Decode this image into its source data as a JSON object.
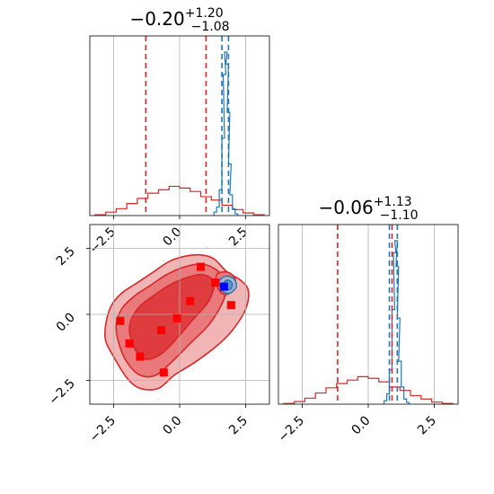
{
  "chart_data": {
    "type": "corner",
    "grid": true,
    "colors": {
      "primary": "#d62728",
      "secondary": "#1f77b4",
      "sample_marker": "#ff0000",
      "truth_marker": "#0000ff",
      "contour_levels": [
        "#f2b5b6",
        "#e9797b",
        "#df3c3f"
      ]
    },
    "panels": [
      {
        "kind": "histogram",
        "position": "top-left",
        "title": {
          "median": "−0.20",
          "plus": "+1.20",
          "minus": "−1.08"
        },
        "xlim": [
          -3.4,
          3.4
        ],
        "xticks": [
          -2.5,
          0.0,
          2.5
        ],
        "tick_labels": [
          "−2.5",
          "0.0",
          "2.5"
        ],
        "series": [
          {
            "name": "",
            "color": "#d62728",
            "bins_center": [
              -3.0,
              -2.6,
              -2.2,
              -1.8,
              -1.4,
              -1.0,
              -0.6,
              -0.2,
              0.2,
              0.6,
              1.0,
              1.4,
              1.8,
              2.2,
              2.6,
              3.0
            ],
            "density": [
              0.005,
              0.02,
              0.04,
              0.07,
              0.1,
              0.13,
              0.15,
              0.17,
              0.16,
              0.14,
              0.11,
              0.09,
              0.06,
              0.035,
              0.015,
              0.005
            ]
          },
          {
            "name": "",
            "color": "#1f77b4",
            "bins_center": [
              1.35,
              1.45,
              1.55,
              1.65,
              1.7,
              1.75,
              1.8,
              1.85,
              1.9,
              1.95,
              2.05,
              2.15
            ],
            "density": [
              0.02,
              0.05,
              0.15,
              0.45,
              0.82,
              0.95,
              0.88,
              0.6,
              0.3,
              0.12,
              0.04,
              0.01
            ]
          }
        ],
        "quantile_lines": [
          {
            "series_color": "#d62728",
            "values": [
              -1.28,
              1.0
            ]
          },
          {
            "series_color": "#1f77b4",
            "values": [
              1.6,
              1.85
            ]
          }
        ]
      },
      {
        "kind": "histogram",
        "position": "bottom-right",
        "title": {
          "median": "−0.06",
          "plus": "+1.13",
          "minus": "−1.10"
        },
        "xlim": [
          -3.4,
          3.4
        ],
        "xticks": [
          -2.5,
          0.0,
          2.5
        ],
        "tick_labels": [
          "−2.5",
          "0.0",
          "2.5"
        ],
        "series": [
          {
            "name": "",
            "color": "#d62728",
            "bins_center": [
              -3.0,
              -2.6,
              -2.2,
              -1.8,
              -1.4,
              -1.0,
              -0.6,
              -0.2,
              0.2,
              0.6,
              1.0,
              1.4,
              1.8,
              2.2,
              2.6,
              3.0
            ],
            "density": [
              0.004,
              0.015,
              0.035,
              0.065,
              0.095,
              0.12,
              0.14,
              0.16,
              0.15,
              0.13,
              0.1,
              0.08,
              0.05,
              0.03,
              0.012,
              0.004
            ]
          },
          {
            "name": "",
            "color": "#1f77b4",
            "bins_center": [
              0.65,
              0.75,
              0.85,
              0.95,
              1.0,
              1.05,
              1.1,
              1.15,
              1.2,
              1.3,
              1.4,
              1.5
            ],
            "density": [
              0.02,
              0.06,
              0.2,
              0.55,
              0.88,
              0.95,
              0.8,
              0.5,
              0.25,
              0.1,
              0.03,
              0.01
            ]
          }
        ],
        "quantile_lines": [
          {
            "series_color": "#d62728",
            "values": [
              -1.16,
              0.9
            ]
          },
          {
            "series_color": "#1f77b4",
            "values": [
              0.8,
              1.1
            ]
          }
        ]
      },
      {
        "kind": "scatter_contour",
        "position": "bottom-left",
        "xlim": [
          -3.4,
          3.4
        ],
        "ylim": [
          -3.4,
          3.4
        ],
        "xticks": [
          -2.5,
          0.0,
          2.5
        ],
        "yticks": [
          -2.5,
          0.0,
          2.5
        ],
        "xtick_labels": [
          "−2.5",
          "0.0",
          "2.5"
        ],
        "ytick_labels": [
          "−2.5",
          "0.0",
          "2.5"
        ],
        "contours": [
          {
            "level": 3,
            "points": [
              [
                -2.8,
                -0.4
              ],
              [
                -2.6,
                0.3
              ],
              [
                -2.2,
                0.8
              ],
              [
                -1.6,
                1.2
              ],
              [
                -1.0,
                1.6
              ],
              [
                -0.4,
                2.0
              ],
              [
                0.2,
                2.2
              ],
              [
                0.8,
                2.25
              ],
              [
                1.3,
                2.1
              ],
              [
                1.8,
                1.6
              ],
              [
                2.3,
                1.3
              ],
              [
                2.6,
                0.9
              ],
              [
                2.5,
                0.2
              ],
              [
                2.0,
                -0.6
              ],
              [
                1.4,
                -1.2
              ],
              [
                0.6,
                -1.8
              ],
              [
                -0.2,
                -2.3
              ],
              [
                -0.8,
                -2.8
              ],
              [
                -1.5,
                -2.8
              ],
              [
                -2.0,
                -2.4
              ],
              [
                -2.5,
                -1.6
              ],
              [
                -2.8,
                -1.0
              ]
            ]
          },
          {
            "level": 2,
            "points": [
              [
                -2.4,
                -0.4
              ],
              [
                -2.2,
                0.2
              ],
              [
                -1.7,
                0.7
              ],
              [
                -1.1,
                1.1
              ],
              [
                -0.5,
                1.5
              ],
              [
                0.2,
                1.8
              ],
              [
                0.9,
                1.9
              ],
              [
                1.5,
                1.6
              ],
              [
                1.8,
                1.1
              ],
              [
                1.6,
                0.4
              ],
              [
                1.1,
                -0.4
              ],
              [
                0.4,
                -1.1
              ],
              [
                -0.3,
                -1.8
              ],
              [
                -0.9,
                -2.3
              ],
              [
                -1.5,
                -2.3
              ],
              [
                -2.0,
                -1.8
              ],
              [
                -2.3,
                -1.1
              ]
            ]
          },
          {
            "level": 1,
            "points": [
              [
                -1.9,
                -0.5
              ],
              [
                -1.6,
                0.2
              ],
              [
                -1.0,
                0.7
              ],
              [
                -0.4,
                1.1
              ],
              [
                0.3,
                1.4
              ],
              [
                0.9,
                1.5
              ],
              [
                1.3,
                1.2
              ],
              [
                1.1,
                0.5
              ],
              [
                0.5,
                -0.2
              ],
              [
                -0.1,
                -0.9
              ],
              [
                -0.7,
                -1.5
              ],
              [
                -1.3,
                -1.7
              ],
              [
                -1.7,
                -1.3
              ]
            ]
          },
          {
            "level": 2,
            "points": [
              [
                1.4,
                1.5
              ],
              [
                1.8,
                1.6
              ],
              [
                2.1,
                1.35
              ],
              [
                2.0,
                0.9
              ],
              [
                1.7,
                0.75
              ],
              [
                1.45,
                1.0
              ]
            ]
          }
        ],
        "secondary_contours": [
          {
            "points": [
              [
                1.5,
                1.25
              ],
              [
                1.75,
                1.45
              ],
              [
                2.05,
                1.35
              ],
              [
                2.15,
                1.05
              ],
              [
                1.9,
                0.8
              ],
              [
                1.6,
                0.9
              ]
            ]
          },
          {
            "points": [
              [
                1.65,
                1.15
              ],
              [
                1.8,
                1.3
              ],
              [
                1.98,
                1.2
              ],
              [
                1.95,
                0.98
              ],
              [
                1.75,
                0.92
              ]
            ]
          }
        ],
        "sample_markers": [
          [
            -2.25,
            -0.25
          ],
          [
            -1.9,
            -1.1
          ],
          [
            -1.5,
            -1.6
          ],
          [
            -0.7,
            -0.6
          ],
          [
            -0.6,
            -2.2
          ],
          [
            -0.1,
            -0.15
          ],
          [
            0.4,
            0.5
          ],
          [
            0.8,
            1.8
          ],
          [
            1.35,
            1.2
          ],
          [
            1.95,
            0.35
          ]
        ],
        "truth_markers": [
          [
            1.68,
            1.05
          ]
        ]
      }
    ]
  }
}
